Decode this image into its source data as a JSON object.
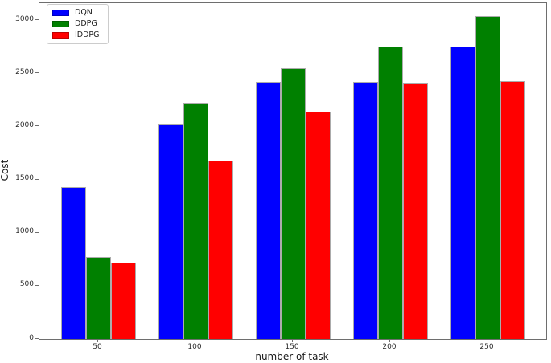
{
  "chart_data": {
    "type": "bar",
    "title": "",
    "xlabel": "number of task",
    "ylabel": "Cost",
    "categories": [
      "50",
      "100",
      "150",
      "200",
      "250"
    ],
    "series": [
      {
        "name": "DQN",
        "color": "#0000ff",
        "values": [
          1430,
          2020,
          2420,
          2420,
          2750
        ]
      },
      {
        "name": "DDPG",
        "color": "#008000",
        "values": [
          770,
          2220,
          2550,
          2750,
          3040
        ]
      },
      {
        "name": "IDDPG",
        "color": "#ff0000",
        "values": [
          720,
          1680,
          2140,
          2410,
          2430
        ]
      }
    ],
    "ylim": [
      0,
      3160
    ],
    "yticks": [
      0,
      500,
      1000,
      1500,
      2000,
      2500,
      3000
    ],
    "legend_position": "upper left",
    "grid": false
  },
  "layout_colors": {
    "spine": "#6e6e6e",
    "bar_edge": "#ababab",
    "background": "#ffffff"
  }
}
